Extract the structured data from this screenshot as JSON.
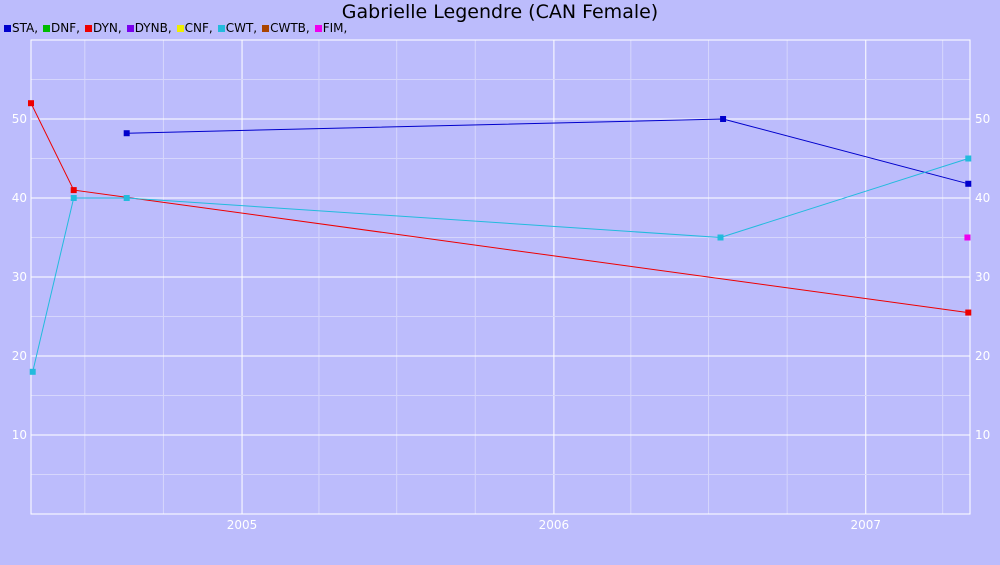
{
  "chart_data": {
    "type": "line",
    "title": "Gabrielle Legendre (CAN Female)",
    "xlabel": "",
    "ylabel": "",
    "xlim": [
      "2004-04-29",
      "2007-05-03"
    ],
    "ylim": [
      0,
      60
    ],
    "grid": true,
    "legend_position": "top-left",
    "x_ticks": [
      "2005",
      "2006",
      "2007"
    ],
    "y_ticks": [
      10,
      20,
      30,
      40,
      50
    ],
    "series": [
      {
        "name": "STA,",
        "color": "#0000cc",
        "points": [
          [
            "2004-08-19",
            48.2
          ],
          [
            "2006-07-18",
            50
          ],
          [
            "2007-05-01",
            41.8
          ]
        ]
      },
      {
        "name": "DNF,",
        "color": "#00bb00",
        "points": []
      },
      {
        "name": "DYN,",
        "color": "#ee0000",
        "points": [
          [
            "2004-04-29",
            52
          ],
          [
            "2004-06-18",
            41
          ],
          [
            "2007-05-01",
            25.5
          ]
        ]
      },
      {
        "name": "DYNB,",
        "color": "#7a00ee",
        "points": []
      },
      {
        "name": "CNF,",
        "color": "#eeee00",
        "points": []
      },
      {
        "name": "CWT,",
        "color": "#22bbdd",
        "points": [
          [
            "2004-05-01",
            18
          ],
          [
            "2004-06-18",
            40
          ],
          [
            "2004-08-19",
            40
          ],
          [
            "2006-07-15",
            35
          ],
          [
            "2007-05-01",
            45
          ]
        ]
      },
      {
        "name": "CWTB,",
        "color": "#aa4400",
        "points": []
      },
      {
        "name": "FIM,",
        "color": "#ee00ee",
        "points": [
          [
            "2007-04-30",
            35
          ]
        ]
      }
    ]
  }
}
